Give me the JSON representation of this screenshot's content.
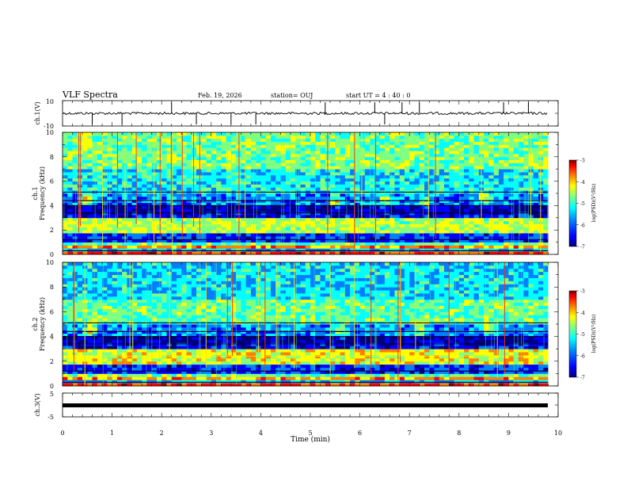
{
  "header": {
    "title": "VLF Spectra",
    "date": "Feb. 19, 2026",
    "station": "station= OUJ",
    "start": "start  UT =   4 : 40 : 0"
  },
  "chart_data": [
    {
      "type": "line",
      "ylabel": "ch.1(V)",
      "ylim": [
        -10,
        10
      ],
      "yticks": [
        "10",
        "-10"
      ],
      "xlim": [
        0,
        10
      ],
      "baseline": 0,
      "spike_times": [
        0.6,
        1.2,
        2.2,
        2.7,
        3.4,
        3.9,
        5.3,
        6.3,
        6.5,
        6.85,
        7.2,
        8.9,
        9.4
      ]
    },
    {
      "type": "heatmap",
      "ylabel": "ch.1\nFrequency  (kHz)",
      "ylim": [
        0,
        10
      ],
      "yticks": [
        "0",
        "2",
        "4",
        "6",
        "8",
        "10"
      ],
      "xlim": [
        0,
        9.8
      ],
      "colorbar": {
        "label": "log(PSD)(V²/Hz)",
        "ticks": [
          "-3",
          "-4",
          "-5",
          "-6",
          "-7"
        ],
        "range": [
          -7,
          -3
        ]
      },
      "bursts": [
        [
          0.5,
          4.5
        ],
        [
          5.5,
          4.3
        ],
        [
          6.5,
          4.4
        ],
        [
          7.3,
          4.3
        ],
        [
          8.5,
          4.6
        ]
      ]
    },
    {
      "type": "heatmap",
      "ylabel": "ch.2\nFrequency  (kHz)",
      "ylim": [
        0,
        10
      ],
      "yticks": [
        "0",
        "2",
        "4",
        "6",
        "8",
        "10"
      ],
      "xlim": [
        0,
        9.8
      ],
      "colorbar": {
        "label": "log(PSD)(V²/Hz)",
        "ticks": [
          "-3",
          "-4",
          "-5",
          "-6",
          "-7"
        ],
        "range": [
          -7,
          -3
        ]
      },
      "bursts": [
        [
          0.55,
          4.6
        ],
        [
          5.6,
          4.5
        ],
        [
          7.2,
          4.6
        ],
        [
          8.6,
          4.7
        ]
      ]
    },
    {
      "type": "line",
      "ylabel": "ch.3(V)",
      "ylim": [
        -5,
        5
      ],
      "yticks": [
        "5",
        "-5"
      ],
      "xlim": [
        0,
        10
      ],
      "baseline": 0
    }
  ],
  "x_axis": {
    "label": "Time  (min)",
    "ticks": [
      "0",
      "1",
      "2",
      "3",
      "4",
      "5",
      "6",
      "7",
      "8",
      "9",
      "10"
    ]
  },
  "colors": {
    "colormap": [
      "#00007f",
      "#0000ff",
      "#0080ff",
      "#00ffff",
      "#80ff80",
      "#ffff00",
      "#ff8000",
      "#ff0000",
      "#7f0000"
    ]
  }
}
